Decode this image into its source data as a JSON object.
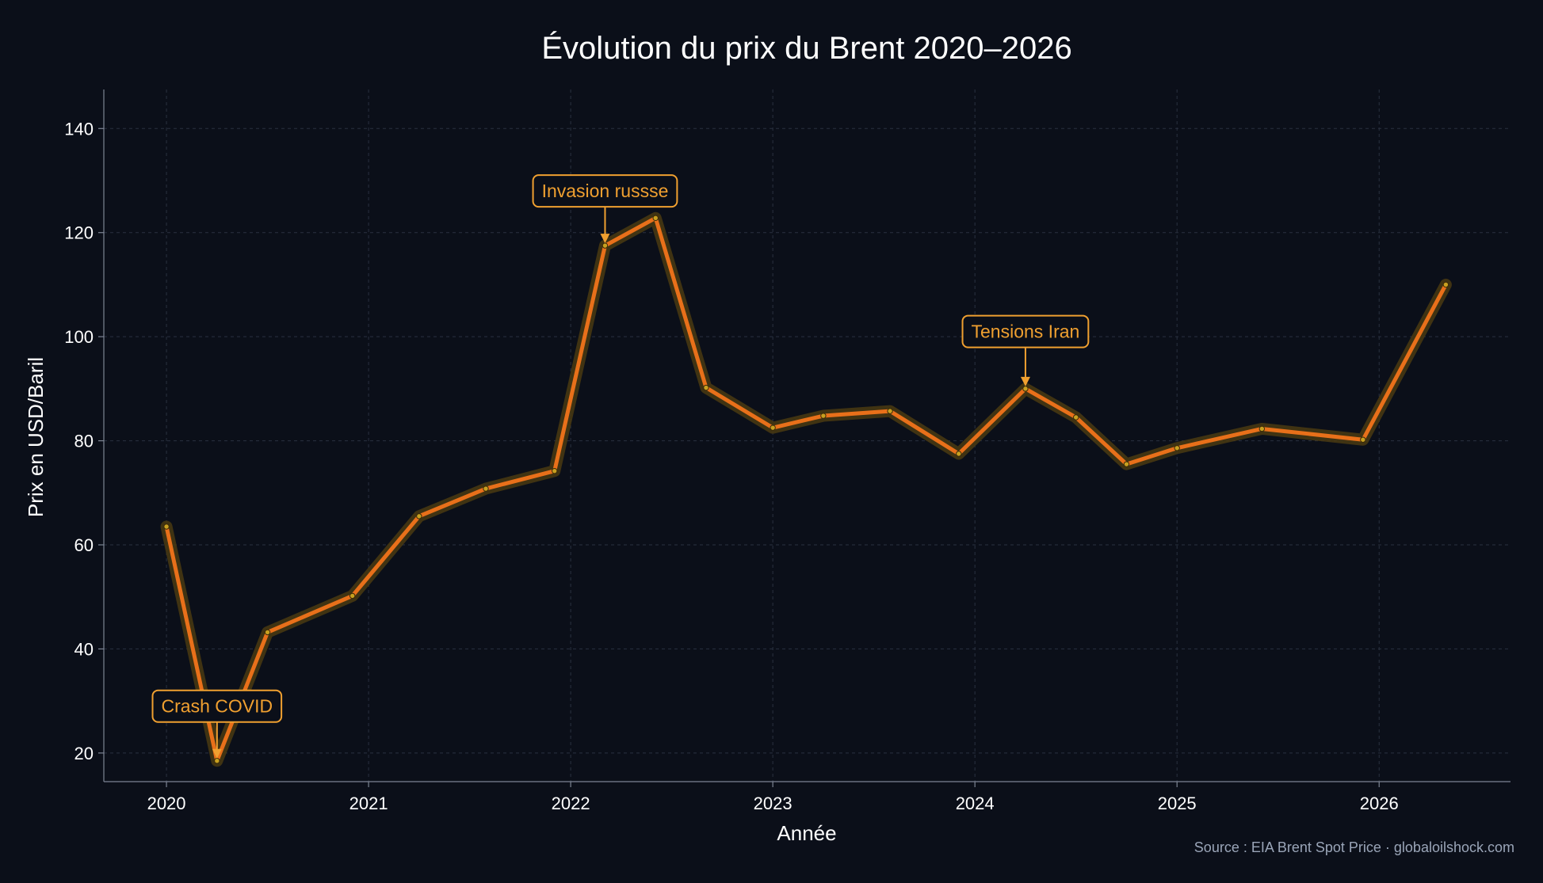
{
  "chart_data": {
    "type": "line",
    "title": "Évolution du prix du Brent 2020–2026",
    "xlabel": "Année",
    "ylabel": "Prix en USD/Baril",
    "source": "Source : EIA Brent Spot Price · globaloilshock.com",
    "xlim": [
      2019.69,
      2026.65
    ],
    "ylim": [
      14.5,
      147.5
    ],
    "x_ticks": [
      2020,
      2021,
      2022,
      2023,
      2024,
      2025,
      2026
    ],
    "y_ticks": [
      20,
      40,
      60,
      80,
      100,
      120,
      140
    ],
    "grid": true,
    "colors": {
      "line": "#e8701a",
      "glow": "#4a3a12",
      "marker": "#c8a020",
      "annotation": "#f0a030",
      "background": "#0b0f19"
    },
    "series": [
      {
        "x": [
          2020.0,
          2020.25,
          2020.5,
          2020.92,
          2021.25,
          2021.58,
          2021.92,
          2022.17,
          2022.42,
          2022.67,
          2023.0,
          2023.25,
          2023.58,
          2023.92,
          2024.25,
          2024.5,
          2024.75,
          2025.0,
          2025.42,
          2025.92,
          2026.33
        ],
        "y": [
          63.5,
          18.5,
          43.2,
          50.2,
          65.5,
          70.8,
          74.2,
          117.5,
          122.8,
          90.2,
          82.5,
          84.8,
          85.7,
          77.5,
          90.0,
          84.5,
          75.5,
          78.6,
          82.3,
          80.2,
          110.0
        ]
      }
    ],
    "annotations": [
      {
        "text": "Crash COVID",
        "x": 2020.25,
        "y": 18.5,
        "label_y": 29
      },
      {
        "text": "Invasion russse",
        "x": 2022.17,
        "y": 117.5,
        "label_y": 128
      },
      {
        "text": "Tensions Iran",
        "x": 2024.25,
        "y": 90.0,
        "label_y": 101
      }
    ]
  }
}
